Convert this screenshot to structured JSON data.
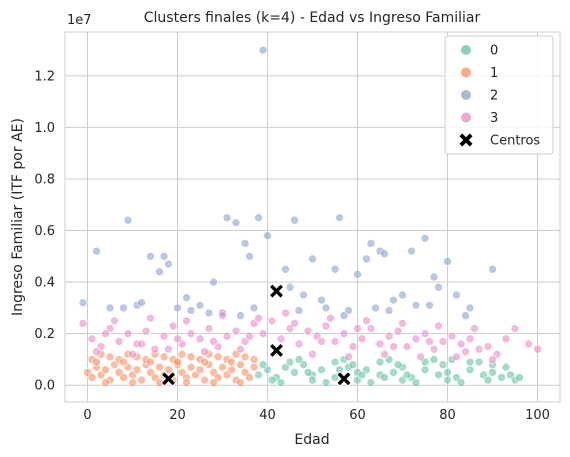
{
  "chart_data": {
    "type": "scatter",
    "title": "Clusters finales (k=4) - Edad vs Ingreso Familiar",
    "xlabel": "Edad",
    "ylabel": "Ingreso Familiar (ITF por AE)",
    "y_offset_label": "1e7",
    "xlim": [
      -5,
      105
    ],
    "ylim": [
      -0.065,
      1.37
    ],
    "x_ticks": [
      0,
      20,
      40,
      60,
      80,
      100
    ],
    "y_ticks": [
      0.0,
      0.2,
      0.4,
      0.6,
      0.8,
      1.0,
      1.2
    ],
    "x_tick_labels": [
      "0",
      "20",
      "40",
      "60",
      "80",
      "100"
    ],
    "y_tick_labels": [
      "0.0",
      "0.2",
      "0.4",
      "0.6",
      "0.8",
      "1.0",
      "1.2"
    ],
    "grid": true,
    "legend_position": "top-right",
    "series": [
      {
        "name": "0",
        "color": "#66c2a5",
        "x": [
          38,
          40,
          42,
          44,
          46,
          48,
          50,
          52,
          55,
          58,
          60,
          62,
          65,
          68,
          70,
          72,
          75,
          78,
          80,
          82,
          85,
          88,
          90,
          92,
          94,
          95,
          96,
          41,
          45,
          50,
          55,
          60,
          65,
          70,
          75,
          80,
          85,
          90,
          43,
          47,
          53,
          57,
          63,
          67,
          73,
          77,
          83,
          87,
          39,
          49,
          59,
          69,
          79,
          89,
          93,
          61,
          71,
          81,
          56,
          66
        ],
        "y": [
          0.04,
          0.06,
          0.03,
          0.07,
          0.05,
          0.08,
          0.04,
          0.06,
          0.03,
          0.07,
          0.05,
          0.06,
          0.04,
          0.05,
          0.07,
          0.03,
          0.06,
          0.04,
          0.05,
          0.03,
          0.06,
          0.04,
          0.05,
          0.03,
          0.04,
          0.02,
          0.03,
          0.02,
          0.09,
          0.02,
          0.09,
          0.02,
          0.09,
          0.02,
          0.09,
          0.02,
          0.09,
          0.08,
          0.01,
          0.1,
          0.01,
          0.1,
          0.01,
          0.1,
          0.01,
          0.1,
          0.01,
          0.09,
          0.08,
          0.05,
          0.08,
          0.08,
          0.08,
          0.02,
          0.07,
          0.04,
          0.04,
          0.1,
          0.06,
          0.03
        ]
      },
      {
        "name": "1",
        "color": "#fc8d62",
        "x": [
          0,
          1,
          2,
          3,
          4,
          5,
          6,
          7,
          8,
          9,
          10,
          11,
          12,
          13,
          14,
          15,
          16,
          17,
          18,
          19,
          20,
          21,
          22,
          23,
          24,
          25,
          26,
          27,
          28,
          29,
          30,
          31,
          32,
          33,
          34,
          35,
          36,
          37,
          1,
          4,
          7,
          10,
          13,
          16,
          19,
          22,
          25,
          28,
          31,
          34,
          37,
          2,
          5,
          8,
          11,
          14,
          17,
          20,
          23,
          26,
          29,
          32,
          35,
          3,
          9,
          15,
          21,
          27,
          33
        ],
        "y": [
          0.05,
          0.03,
          0.07,
          0.04,
          0.06,
          0.02,
          0.08,
          0.05,
          0.03,
          0.07,
          0.04,
          0.06,
          0.02,
          0.08,
          0.05,
          0.03,
          0.07,
          0.04,
          0.06,
          0.02,
          0.08,
          0.05,
          0.03,
          0.07,
          0.04,
          0.06,
          0.02,
          0.08,
          0.05,
          0.03,
          0.07,
          0.04,
          0.06,
          0.02,
          0.08,
          0.05,
          0.03,
          0.07,
          0.1,
          0.01,
          0.1,
          0.01,
          0.1,
          0.01,
          0.1,
          0.01,
          0.1,
          0.01,
          0.1,
          0.01,
          0.1,
          0.09,
          0.11,
          0.09,
          0.11,
          0.09,
          0.11,
          0.09,
          0.11,
          0.09,
          0.11,
          0.09,
          0.11,
          0.12,
          0.12,
          0.12,
          0.12,
          0.12,
          0.12
        ]
      },
      {
        "name": "2",
        "color": "#8da0cb",
        "x": [
          39,
          -1,
          2,
          9,
          8,
          14,
          16,
          17,
          18,
          20,
          25,
          28,
          31,
          33,
          35,
          36,
          38,
          40,
          44,
          46,
          48,
          50,
          53,
          55,
          56,
          60,
          62,
          63,
          65,
          66,
          68,
          70,
          72,
          75,
          78,
          80,
          82,
          85,
          90,
          5,
          11,
          22,
          27,
          34,
          42,
          47,
          52,
          58,
          64,
          73,
          77,
          84,
          12,
          23,
          30,
          37,
          45,
          57,
          67,
          76
        ],
        "y": [
          1.3,
          0.32,
          0.52,
          0.64,
          0.3,
          0.5,
          0.44,
          0.5,
          0.47,
          0.3,
          0.31,
          0.4,
          0.65,
          0.63,
          0.55,
          0.5,
          0.65,
          0.58,
          0.45,
          0.64,
          0.35,
          0.49,
          0.3,
          0.45,
          0.65,
          0.43,
          0.49,
          0.55,
          0.52,
          0.51,
          0.33,
          0.35,
          0.52,
          0.57,
          0.38,
          0.48,
          0.35,
          0.3,
          0.45,
          0.3,
          0.31,
          0.34,
          0.28,
          0.27,
          0.37,
          0.29,
          0.33,
          0.29,
          0.3,
          0.31,
          0.42,
          0.27,
          0.32,
          0.29,
          0.28,
          0.3,
          0.38,
          0.27,
          0.29,
          0.31
        ]
      },
      {
        "name": "3",
        "color": "#e78ac3",
        "x": [
          -1,
          1,
          3,
          5,
          7,
          9,
          11,
          13,
          15,
          17,
          19,
          21,
          23,
          25,
          27,
          29,
          31,
          33,
          35,
          37,
          39,
          41,
          43,
          45,
          47,
          49,
          51,
          53,
          55,
          57,
          59,
          61,
          63,
          65,
          67,
          69,
          71,
          73,
          75,
          77,
          79,
          81,
          83,
          85,
          87,
          89,
          91,
          93,
          95,
          98,
          100,
          2,
          6,
          10,
          14,
          18,
          22,
          26,
          30,
          34,
          38,
          42,
          46,
          50,
          54,
          58,
          62,
          66,
          70,
          74,
          78,
          82,
          86,
          90,
          4,
          12,
          20,
          28,
          36,
          44,
          52,
          60,
          68,
          76,
          84
        ],
        "y": [
          0.24,
          0.18,
          0.15,
          0.22,
          0.17,
          0.2,
          0.16,
          0.21,
          0.14,
          0.19,
          0.23,
          0.16,
          0.2,
          0.18,
          0.22,
          0.15,
          0.19,
          0.21,
          0.17,
          0.24,
          0.2,
          0.25,
          0.18,
          0.22,
          0.16,
          0.21,
          0.19,
          0.23,
          0.17,
          0.2,
          0.15,
          0.18,
          0.22,
          0.16,
          0.19,
          0.21,
          0.15,
          0.18,
          0.2,
          0.14,
          0.17,
          0.19,
          0.16,
          0.18,
          0.14,
          0.15,
          0.12,
          0.18,
          0.22,
          0.16,
          0.14,
          0.13,
          0.25,
          0.12,
          0.26,
          0.14,
          0.25,
          0.13,
          0.27,
          0.14,
          0.26,
          0.13,
          0.24,
          0.12,
          0.26,
          0.11,
          0.25,
          0.12,
          0.24,
          0.11,
          0.23,
          0.11,
          0.22,
          0.1,
          0.2,
          0.16,
          0.18,
          0.17,
          0.19,
          0.28,
          0.17,
          0.22,
          0.15,
          0.17,
          0.13
        ]
      },
      {
        "name": "Centros",
        "color": "#000000",
        "marker": "X",
        "x": [
          18,
          42,
          42,
          57
        ],
        "y": [
          0.025,
          0.365,
          0.135,
          0.025
        ]
      }
    ]
  }
}
